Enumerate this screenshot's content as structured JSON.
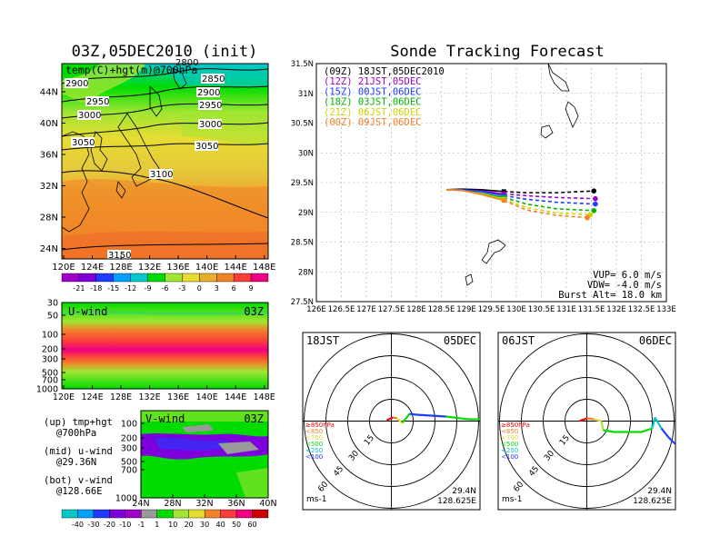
{
  "left_title": "03Z,05DEC2010 (init)",
  "right_title": "Sonde Tracking Forecast",
  "map_panel": {
    "label": "temp(C)+hgt(m)@700hPa",
    "contours": [
      "2900",
      "2850",
      "2900",
      "2950",
      "3000",
      "3000",
      "3050",
      "3050",
      "3100",
      "3150",
      "2950",
      "2800"
    ],
    "x_ticks": [
      "120E",
      "124E",
      "128E",
      "132E",
      "136E",
      "140E",
      "144E",
      "148E"
    ],
    "y_ticks": [
      "44N",
      "40N",
      "36N",
      "32N",
      "28N",
      "24N"
    ],
    "colorbar_labels": [
      "-21",
      "-18",
      "-15",
      "-12",
      "-9",
      "-6",
      "-3",
      "0",
      "3",
      "6",
      "9"
    ],
    "colorbar_colors": [
      "#a000c8",
      "#7d00dc",
      "#1e3cff",
      "#00a0ff",
      "#00c8c8",
      "#00dc00",
      "#a0e632",
      "#e6dc32",
      "#e6af2d",
      "#f08228",
      "#fa3c3c",
      "#f00082"
    ]
  },
  "u_panel": {
    "label": "U-wind",
    "time": "03Z",
    "y_ticks": [
      "30",
      "50",
      "100",
      "200",
      "300",
      "500",
      "700",
      "1000"
    ],
    "x_ticks": [
      "120E",
      "124E",
      "128E",
      "132E",
      "136E",
      "140E",
      "144E",
      "148E"
    ]
  },
  "v_panel": {
    "label": "V-wind",
    "time": "03Z",
    "y_ticks": [
      "100",
      "200",
      "300",
      "500",
      "700",
      "1000"
    ],
    "x_ticks": [
      "24N",
      "28N",
      "32N",
      "36N",
      "40N"
    ]
  },
  "legend_text": {
    "up": "(up) tmp+hgt",
    "up2": "@700hPa",
    "mid": "(mid) u-wind",
    "mid2": "@29.36N",
    "bot": "(bot) v-wind",
    "bot2": "@128.66E"
  },
  "wind_colorbar": {
    "labels": [
      "-40",
      "-30",
      "-20",
      "-10",
      "-1",
      "1",
      "10",
      "20",
      "30",
      "40",
      "50",
      "60"
    ],
    "colors": [
      "#00c8c8",
      "#00a0ff",
      "#1e3cff",
      "#7d00dc",
      "#a000c8",
      "#999999",
      "#00dc00",
      "#a0e632",
      "#e6dc32",
      "#f08228",
      "#fa3c3c",
      "#f00082",
      "#c80000"
    ]
  },
  "chart_data": {
    "type": "line",
    "title": "Sonde Tracking Forecast",
    "xlim": [
      126,
      133
    ],
    "ylim": [
      27.5,
      31.5
    ],
    "x_ticks": [
      "126E",
      "126.5E",
      "127E",
      "127.5E",
      "128E",
      "128.5E",
      "129E",
      "129.5E",
      "130E",
      "130.5E",
      "131E",
      "131.5E",
      "132E",
      "132.5E",
      "133E"
    ],
    "y_ticks": [
      "27.5N",
      "28N",
      "28.5N",
      "29N",
      "29.5N",
      "30N",
      "30.5N",
      "31N",
      "31.5N"
    ],
    "series": [
      {
        "name": "(09Z) 18JST,05DEC2010",
        "color": "#000000",
        "points": [
          [
            128.6,
            29.38
          ],
          [
            128.9,
            29.39
          ],
          [
            129.3,
            29.38
          ],
          [
            129.75,
            29.35
          ],
          [
            130.2,
            29.33
          ],
          [
            130.8,
            29.33
          ],
          [
            131.55,
            29.36
          ]
        ]
      },
      {
        "name": "(12Z) 21JST,05DEC",
        "color": "#a000c8",
        "points": [
          [
            128.6,
            29.38
          ],
          [
            128.9,
            29.38
          ],
          [
            129.3,
            29.36
          ],
          [
            129.75,
            29.31
          ],
          [
            130.2,
            29.28
          ],
          [
            130.8,
            29.25
          ],
          [
            131.58,
            29.23
          ]
        ]
      },
      {
        "name": "(15Z) 00JST,06DEC",
        "color": "#1e3cff",
        "points": [
          [
            128.6,
            29.38
          ],
          [
            128.9,
            29.38
          ],
          [
            129.3,
            29.35
          ],
          [
            129.75,
            29.28
          ],
          [
            130.2,
            29.22
          ],
          [
            130.8,
            29.17
          ],
          [
            131.58,
            29.14
          ]
        ]
      },
      {
        "name": "(18Z) 03JST,06DEC",
        "color": "#00b400",
        "points": [
          [
            128.6,
            29.38
          ],
          [
            128.9,
            29.37
          ],
          [
            129.3,
            29.32
          ],
          [
            129.75,
            29.25
          ],
          [
            130.2,
            29.14
          ],
          [
            130.8,
            29.06
          ],
          [
            131.55,
            29.03
          ]
        ]
      },
      {
        "name": "(21Z) 06JST,06DEC",
        "color": "#d2d200",
        "points": [
          [
            128.6,
            29.38
          ],
          [
            128.9,
            29.37
          ],
          [
            129.3,
            29.31
          ],
          [
            129.75,
            29.22
          ],
          [
            130.2,
            29.08
          ],
          [
            130.8,
            28.99
          ],
          [
            131.48,
            28.96
          ]
        ]
      },
      {
        "name": "(00Z) 09JST,06DEC",
        "color": "#f08228",
        "points": [
          [
            128.6,
            29.38
          ],
          [
            128.9,
            29.37
          ],
          [
            129.3,
            29.3
          ],
          [
            129.75,
            29.2
          ],
          [
            130.2,
            29.04
          ],
          [
            130.8,
            28.95
          ],
          [
            131.42,
            28.91
          ]
        ]
      }
    ],
    "params": [
      "VUP=  6.0  m/s",
      "VDW= -4.0  m/s",
      "Burst Alt= 18.0  km"
    ]
  },
  "hodo_left": {
    "time": "18JST",
    "date": "05DEC",
    "lat": "29.4N",
    "lon": "128.625E",
    "unit": "ms-1",
    "rings": [
      "15",
      "30",
      "45",
      "60"
    ],
    "levels": [
      {
        "t": "≥850hPa",
        "c": "#fa0000"
      },
      {
        "t": "<850",
        "c": "#f08228"
      },
      {
        "t": "<700",
        "c": "#e6dc32"
      },
      {
        "t": "<500",
        "c": "#00dc00"
      },
      {
        "t": "<250",
        "c": "#00c8c8"
      },
      {
        "t": "<100",
        "c": "#1e3cff"
      }
    ]
  },
  "hodo_right": {
    "time": "06JST",
    "date": "06DEC",
    "lat": "29.4N",
    "lon": "128.625E",
    "unit": "ms-1",
    "rings": [
      "15",
      "30",
      "45",
      "60"
    ],
    "levels": [
      {
        "t": "≥850hPa",
        "c": "#fa0000"
      },
      {
        "t": "<850",
        "c": "#f08228"
      },
      {
        "t": "<700",
        "c": "#e6dc32"
      },
      {
        "t": "<500",
        "c": "#00dc00"
      },
      {
        "t": "<250",
        "c": "#00c8c8"
      },
      {
        "t": "<100",
        "c": "#1e3cff"
      }
    ]
  }
}
